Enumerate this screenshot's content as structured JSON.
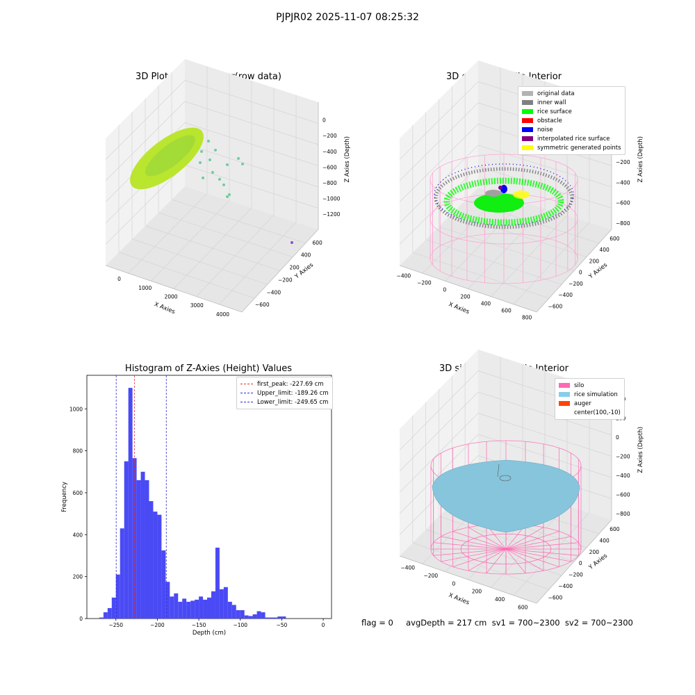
{
  "suptitle": "PJPJR02 2025-11-07 08:25:32",
  "footer": "flag = 0     avgDepth = 217 cm  sv1 = 700~2300  sv2 = 700~2300",
  "panels": {
    "p1": {
      "title": "3D Plot of Silo Interior(row data)",
      "xlabel": "X Axies",
      "ylabel": "Y Axies",
      "zlabel": "Z Axies (Depth)",
      "xticks": [
        "0",
        "1000",
        "2000",
        "3000",
        "4000"
      ],
      "yticks": [
        "600",
        "400",
        "200",
        "−200",
        "−400",
        "−600"
      ],
      "zticks": [
        "0",
        "−200",
        "−400",
        "−600",
        "−800",
        "−1000",
        "−1200"
      ]
    },
    "p2": {
      "title": "3D classify of Silo Interior",
      "xlabel": "X Axies",
      "ylabel": "Y Axies",
      "zlabel": "Z Axies (Depth)",
      "xticks": [
        "−400",
        "−200",
        "0",
        "200",
        "400",
        "600",
        "800"
      ],
      "yticks": [
        "600",
        "400",
        "200",
        "0",
        "−200",
        "−400",
        "−600"
      ],
      "zticks": [
        "200",
        "0",
        "−200",
        "−400",
        "−600",
        "−800"
      ],
      "legend": [
        {
          "label": "original data",
          "color": "#b3b3b3"
        },
        {
          "label": "inner wall",
          "color": "#808080"
        },
        {
          "label": "rice surface",
          "color": "#00ff00"
        },
        {
          "label": "obstacle",
          "color": "#ff0000"
        },
        {
          "label": "noise",
          "color": "#0000ff"
        },
        {
          "label": "interpolated rice surface",
          "color": "#800080"
        },
        {
          "label": "symmetric generated points",
          "color": "#ffff00"
        }
      ]
    },
    "p4": {
      "title": "3D simulation of Silo Interior",
      "xlabel": "X Axies",
      "ylabel": "Y Axies",
      "zlabel": "Z Axies (Depth)",
      "xticks": [
        "−400",
        "−200",
        "0",
        "200",
        "400",
        "600"
      ],
      "yticks": [
        "600",
        "400",
        "200",
        "0",
        "−200",
        "−400",
        "−600"
      ],
      "zticks": [
        "400",
        "200",
        "0",
        "−200",
        "−400",
        "−600",
        "−800"
      ],
      "legend": [
        {
          "label": "silo",
          "color": "#ff69b4"
        },
        {
          "label": "rice simulation",
          "color": "#87ceeb"
        },
        {
          "label": "auger",
          "color": "#ff4500"
        },
        {
          "label": "center(100,-10)",
          "color": ""
        }
      ]
    }
  },
  "chart_data": {
    "type": "bar",
    "title": "Histogram of Z-Axies (Height) Values",
    "xlabel": "Depth (cm)",
    "ylabel": "Frequency",
    "xlim": [
      -285,
      10
    ],
    "ylim": [
      0,
      1160
    ],
    "xticks": [
      -250,
      -200,
      -150,
      -100,
      -50,
      0
    ],
    "xtick_labels": [
      "−250",
      "−200",
      "−150",
      "−100",
      "−50",
      "0"
    ],
    "yticks": [
      0,
      200,
      400,
      600,
      800,
      1000
    ],
    "bin_width": 5,
    "bin_start": -270,
    "values": [
      5,
      30,
      50,
      100,
      210,
      430,
      750,
      1100,
      765,
      660,
      700,
      660,
      560,
      510,
      495,
      325,
      175,
      105,
      120,
      80,
      95,
      80,
      85,
      90,
      105,
      90,
      100,
      130,
      338,
      140,
      150,
      80,
      65,
      40,
      40,
      15,
      12,
      20,
      35,
      30,
      5,
      5,
      5,
      10,
      10
    ],
    "bar_color": "#4a4af5",
    "vlines": [
      {
        "label": "first_peak: -227.69 cm",
        "x": -227.69,
        "color": "#e03030"
      },
      {
        "label": "Upper_limit: -189.26 cm",
        "x": -189.26,
        "color": "#2a2ad0"
      },
      {
        "label": "Lower_limit: -249.65 cm",
        "x": -249.65,
        "color": "#2a2ad0"
      }
    ]
  }
}
